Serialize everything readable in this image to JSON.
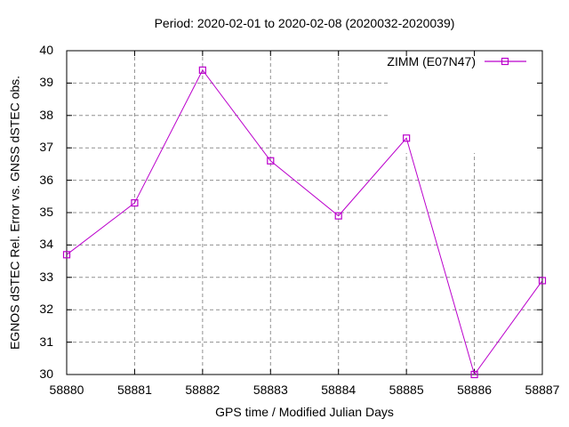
{
  "colors": {
    "series_line": "#BB00CC",
    "grid": "#909090",
    "axis": "#000000",
    "text": "#000000",
    "background": "#ffffff"
  },
  "chart_data": {
    "type": "line",
    "title": "Period: 2020-02-01 to 2020-02-08 (2020032-2020039)",
    "xlabel": "GPS time / Modified Julian Days",
    "ylabel": "EGNOS dSTEC Rel. Error vs. GNSS dSTEC obs.",
    "xlim": [
      58880,
      58887
    ],
    "ylim": [
      30,
      40
    ],
    "x_ticks": [
      58880,
      58881,
      58882,
      58883,
      58884,
      58885,
      58886,
      58887
    ],
    "y_ticks": [
      30,
      31,
      32,
      33,
      34,
      35,
      36,
      37,
      38,
      39,
      40
    ],
    "grid": true,
    "grid_style": "dashed",
    "legend_position": "top-right",
    "series": [
      {
        "name": "ZIMM (E07N47)",
        "marker": "open-square",
        "color": "#BB00CC",
        "x": [
          58880,
          58881,
          58882,
          58883,
          58884,
          58885,
          58886,
          58887
        ],
        "y": [
          33.7,
          35.3,
          39.4,
          36.6,
          34.9,
          37.3,
          30.0,
          32.9
        ]
      }
    ]
  }
}
